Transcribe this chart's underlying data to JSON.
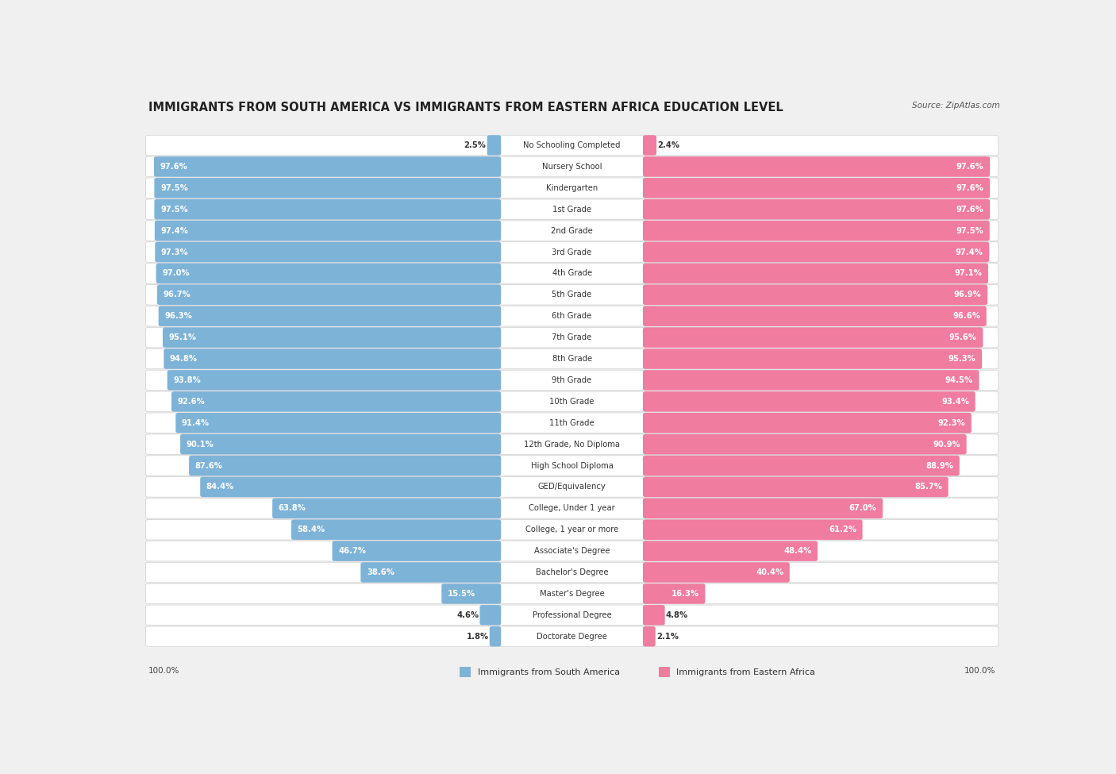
{
  "title": "IMMIGRANTS FROM SOUTH AMERICA VS IMMIGRANTS FROM EASTERN AFRICA EDUCATION LEVEL",
  "source": "Source: ZipAtlas.com",
  "categories": [
    "No Schooling Completed",
    "Nursery School",
    "Kindergarten",
    "1st Grade",
    "2nd Grade",
    "3rd Grade",
    "4th Grade",
    "5th Grade",
    "6th Grade",
    "7th Grade",
    "8th Grade",
    "9th Grade",
    "10th Grade",
    "11th Grade",
    "12th Grade, No Diploma",
    "High School Diploma",
    "GED/Equivalency",
    "College, Under 1 year",
    "College, 1 year or more",
    "Associate's Degree",
    "Bachelor's Degree",
    "Master's Degree",
    "Professional Degree",
    "Doctorate Degree"
  ],
  "south_america": [
    2.5,
    97.6,
    97.5,
    97.5,
    97.4,
    97.3,
    97.0,
    96.7,
    96.3,
    95.1,
    94.8,
    93.8,
    92.6,
    91.4,
    90.1,
    87.6,
    84.4,
    63.8,
    58.4,
    46.7,
    38.6,
    15.5,
    4.6,
    1.8
  ],
  "eastern_africa": [
    2.4,
    97.6,
    97.6,
    97.6,
    97.5,
    97.4,
    97.1,
    96.9,
    96.6,
    95.6,
    95.3,
    94.5,
    93.4,
    92.3,
    90.9,
    88.9,
    85.7,
    67.0,
    61.2,
    48.4,
    40.4,
    16.3,
    4.8,
    2.1
  ],
  "color_sa": "#7eb3d8",
  "color_ea": "#f07ca0",
  "background_color": "#f0f0f0",
  "legend_label_sa": "Immigrants from South America",
  "legend_label_ea": "Immigrants from Eastern Africa"
}
